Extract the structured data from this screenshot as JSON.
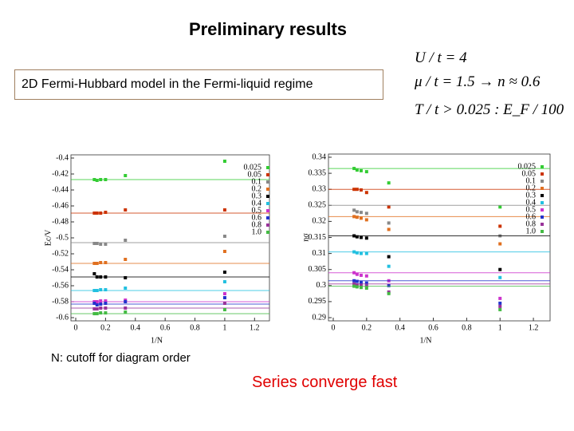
{
  "slide": {
    "title": "Preliminary results",
    "box": "2D Fermi-Hubbard model in the Fermi-liquid regime",
    "params": [
      "U / t = 4",
      "μ / t = 1.5 → n ≈ 0.6",
      "T / t > 0.025 :  E_F / 100"
    ],
    "note": "N: cutoff for diagram order",
    "conclusion": "Series converge fast"
  },
  "chart_data": [
    {
      "type": "scatter",
      "xlabel": "1/N",
      "ylabel": "Ec/V",
      "x": [
        0.125,
        0.143,
        0.167,
        0.2,
        0.333,
        1
      ],
      "xlim": [
        0,
        1.3
      ],
      "xticks": [
        0,
        0.2,
        0.4,
        0.6,
        0.8,
        1,
        1.2
      ],
      "ylim": [
        -0.6,
        -0.4
      ],
      "yticks": [
        -0.6,
        -0.58,
        -0.56,
        -0.54,
        -0.52,
        -0.5,
        -0.48,
        -0.46,
        -0.44,
        -0.42,
        -0.4
      ],
      "series": [
        {
          "name": "0.025",
          "color": "#33cc33",
          "limit": -0.427,
          "values": [
            -0.427,
            -0.428,
            -0.427,
            -0.427,
            -0.422,
            -0.404
          ]
        },
        {
          "name": "0.05",
          "color": "#cc3300",
          "limit": -0.469,
          "values": [
            -0.469,
            -0.469,
            -0.469,
            -0.468,
            -0.465,
            -0.465
          ]
        },
        {
          "name": "0.1",
          "color": "#888888",
          "limit": -0.506,
          "values": [
            -0.507,
            -0.507,
            -0.508,
            -0.508,
            -0.503,
            -0.498
          ]
        },
        {
          "name": "0.2",
          "color": "#e07020",
          "limit": -0.532,
          "values": [
            -0.532,
            -0.532,
            -0.531,
            -0.531,
            -0.527,
            -0.517
          ]
        },
        {
          "name": "0.3",
          "color": "#000000",
          "limit": -0.549,
          "values": [
            -0.545,
            -0.549,
            -0.549,
            -0.549,
            -0.55,
            -0.543
          ]
        },
        {
          "name": "0.4",
          "color": "#22c0e0",
          "limit": -0.566,
          "values": [
            -0.566,
            -0.566,
            -0.565,
            -0.565,
            -0.563,
            -0.555
          ]
        },
        {
          "name": "0.5",
          "color": "#cc33cc",
          "limit": -0.58,
          "values": [
            -0.58,
            -0.58,
            -0.579,
            -0.579,
            -0.578,
            -0.57
          ]
        },
        {
          "name": "0.6",
          "color": "#2233cc",
          "limit": -0.583,
          "values": [
            -0.582,
            -0.584,
            -0.583,
            -0.582,
            -0.58,
            -0.575
          ]
        },
        {
          "name": "0.8",
          "color": "#993399",
          "limit": -0.588,
          "values": [
            -0.589,
            -0.589,
            -0.588,
            -0.588,
            -0.588,
            -0.582
          ]
        },
        {
          "name": "1.0",
          "color": "#44bb44",
          "limit": -0.595,
          "values": [
            -0.595,
            -0.595,
            -0.594,
            -0.594,
            -0.593,
            -0.59
          ]
        }
      ]
    },
    {
      "type": "scatter",
      "xlabel": "1/N",
      "ylabel": "nσ",
      "x": [
        0.125,
        0.143,
        0.167,
        0.2,
        0.333,
        1
      ],
      "xlim": [
        0,
        1.3
      ],
      "xticks": [
        0,
        0.2,
        0.4,
        0.6,
        0.8,
        1,
        1.2
      ],
      "ylim": [
        0.29,
        0.34
      ],
      "yticks": [
        0.29,
        0.295,
        0.3,
        0.305,
        0.31,
        0.315,
        0.32,
        0.325,
        0.33,
        0.335,
        0.34
      ],
      "series": [
        {
          "name": "0.025",
          "color": "#33cc33",
          "limit": 0.3365,
          "values": [
            0.3365,
            0.336,
            0.3358,
            0.3355,
            0.332,
            0.3245
          ]
        },
        {
          "name": "0.05",
          "color": "#cc3300",
          "limit": 0.33,
          "values": [
            0.33,
            0.33,
            0.3298,
            0.329,
            0.3245,
            0.3185
          ]
        },
        {
          "name": "0.1",
          "color": "#888888",
          "limit": 0.325,
          "values": [
            0.3235,
            0.323,
            0.3228,
            0.3225,
            0.3195,
            0.3155
          ]
        },
        {
          "name": "0.2",
          "color": "#e07020",
          "limit": 0.3215,
          "values": [
            0.3215,
            0.3213,
            0.321,
            0.3205,
            0.3175,
            0.313
          ]
        },
        {
          "name": "0.3",
          "color": "#000000",
          "limit": 0.3155,
          "values": [
            0.3155,
            0.3152,
            0.315,
            0.3148,
            0.309,
            0.305
          ]
        },
        {
          "name": "0.4",
          "color": "#22c0e0",
          "limit": 0.3105,
          "values": [
            0.3105,
            0.3102,
            0.31,
            0.31,
            0.306,
            0.3025
          ]
        },
        {
          "name": "0.5",
          "color": "#cc33cc",
          "limit": 0.304,
          "values": [
            0.304,
            0.3035,
            0.3032,
            0.303,
            0.3015,
            0.296
          ]
        },
        {
          "name": "0.6",
          "color": "#2233cc",
          "limit": 0.3015,
          "values": [
            0.3015,
            0.3013,
            0.301,
            0.3008,
            0.3,
            0.2945
          ]
        },
        {
          "name": "0.8",
          "color": "#993399",
          "limit": 0.3005,
          "values": [
            0.3005,
            0.3002,
            0.3,
            0.2998,
            0.298,
            0.2935
          ]
        },
        {
          "name": "1.0",
          "color": "#44bb44",
          "limit": 0.2998,
          "values": [
            0.2998,
            0.2996,
            0.2994,
            0.2992,
            0.2975,
            0.2925
          ]
        }
      ]
    }
  ]
}
